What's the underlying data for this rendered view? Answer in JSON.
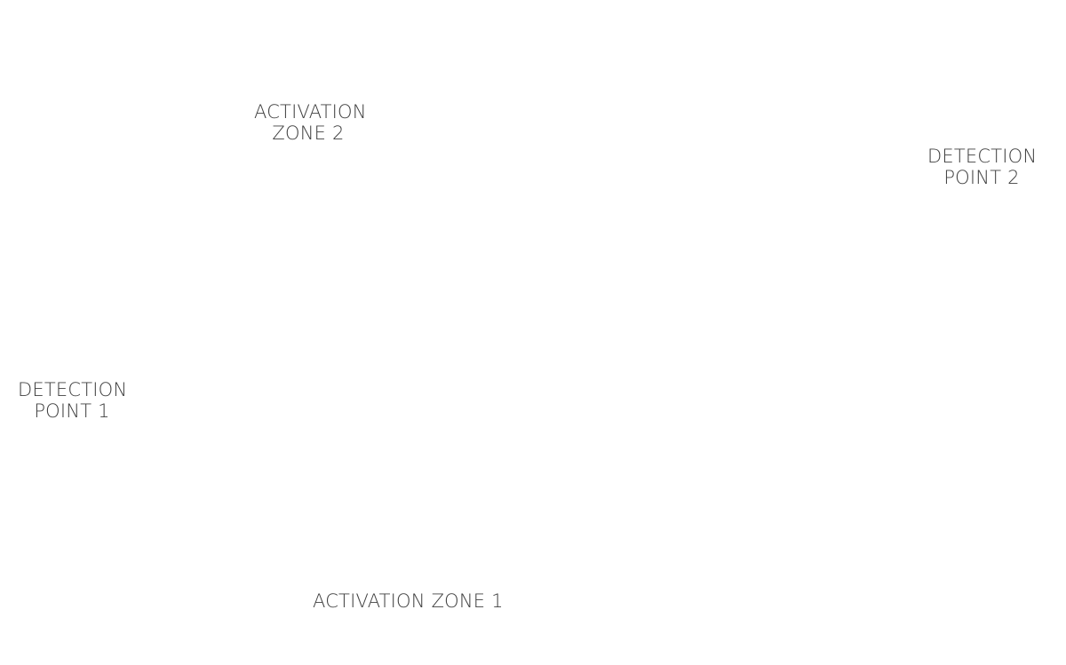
{
  "labels": {
    "activation_zone_2": {
      "line1": "ACTIVATION",
      "line2": "ZONE 2"
    },
    "detection_point_2": {
      "line1": "DETECTION",
      "line2": "POINT 2"
    },
    "detection_point_1": {
      "line1": "DETECTION",
      "line2": "POINT 1"
    },
    "activation_zone_1": {
      "line1": "ACTIVATION ZONE 1"
    }
  },
  "colors": {
    "background": "#ffffff",
    "text": "#3f3f3f"
  }
}
